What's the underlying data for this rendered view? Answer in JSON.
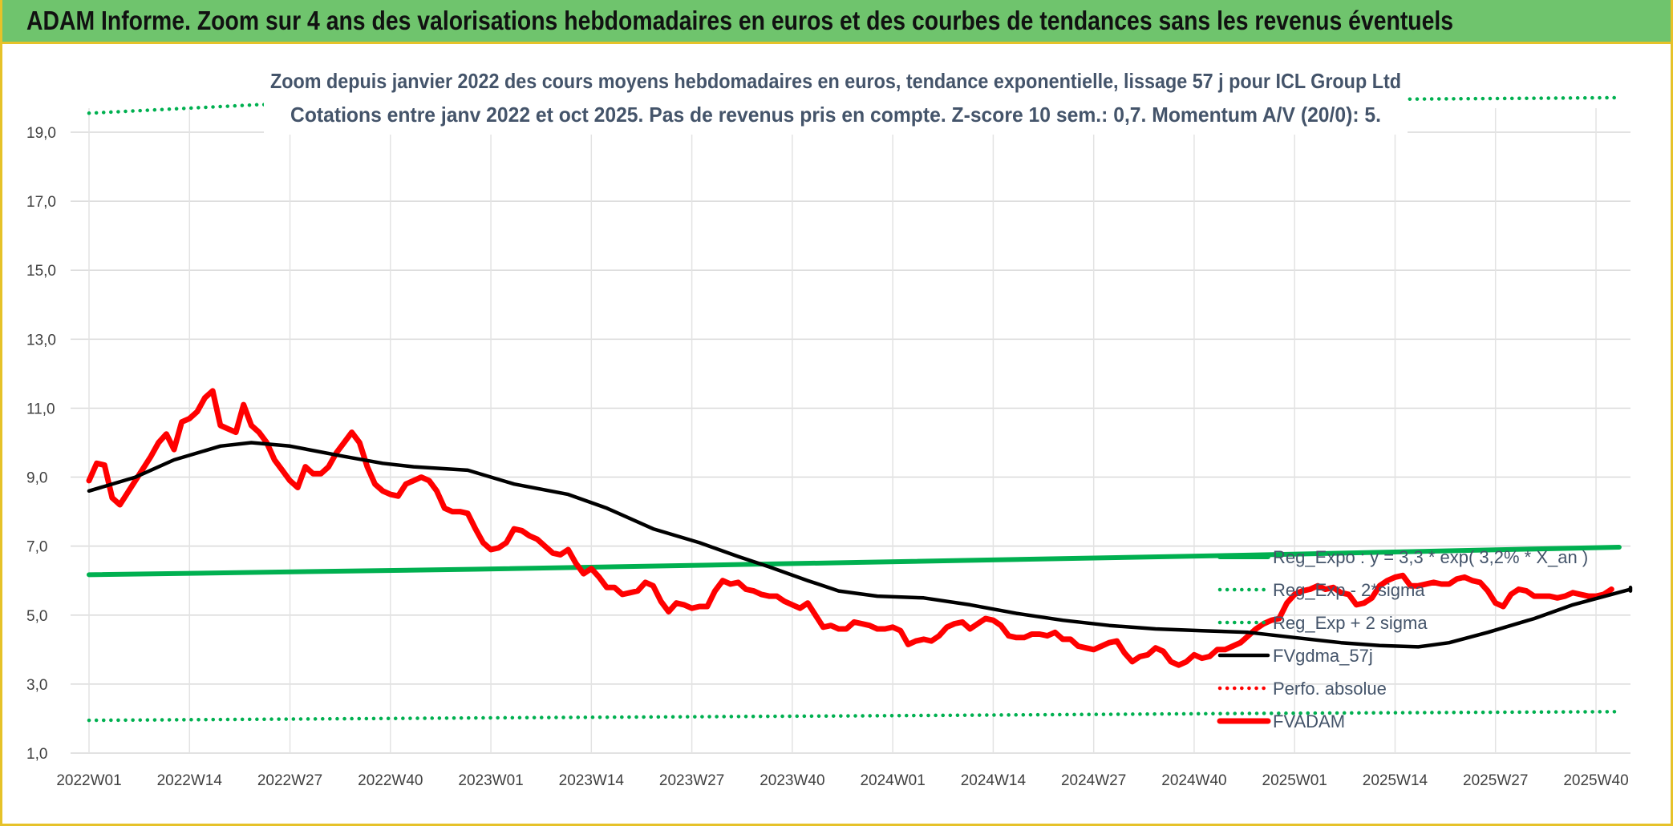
{
  "header": {
    "title": "ADAM Informe. Zoom sur 4 ans des valorisations hebdomadaires en euros et des courbes de tendances sans les revenus éventuels"
  },
  "chart_data": {
    "type": "line",
    "title": "Zoom depuis janvier 2022 des cours moyens hebdomadaires en euros, tendance exponentielle, lissage 57 j pour ICL Group Ltd",
    "subtitle": "Cotations entre janv 2022 et oct 2025. Pas de revenus pris en compte. Z-score 10 sem.: 0,7. Momentum A/V (20/0): 5.",
    "xlabel": "",
    "ylabel": "",
    "ylim": [
      1.0,
      19.0
    ],
    "yticks": [
      "1,0",
      "3,0",
      "5,0",
      "7,0",
      "9,0",
      "11,0",
      "13,0",
      "15,0",
      "17,0",
      "19,0"
    ],
    "ytick_values": [
      1,
      3,
      5,
      7,
      9,
      11,
      13,
      15,
      17,
      19
    ],
    "xrange_weeks": [
      0,
      198
    ],
    "xticks": [
      "2022W01",
      "2022W14",
      "2022W27",
      "2022W40",
      "2023W01",
      "2023W14",
      "2023W27",
      "2023W40",
      "2024W01",
      "2024W14",
      "2024W27",
      "2024W40",
      "2025W01",
      "2025W14",
      "2025W27",
      "2025W40"
    ],
    "grid": true,
    "legend_placement": "bottom-right",
    "series": [
      {
        "name": "Reg_Expo : y = 3,3 * exp( 3,2% *  X_an )",
        "style": "solid",
        "color": "#00b050",
        "points": [
          [
            0,
            6.17
          ],
          [
            50,
            6.33
          ],
          [
            100,
            6.53
          ],
          [
            150,
            6.74
          ],
          [
            198,
            6.97
          ]
        ]
      },
      {
        "name": "Reg_Exp - 2*sigma",
        "style": "dotted",
        "color": "#00b050",
        "points": [
          [
            0,
            1.95
          ],
          [
            50,
            2.02
          ],
          [
            100,
            2.08
          ],
          [
            150,
            2.15
          ],
          [
            198,
            2.2
          ]
        ]
      },
      {
        "name": "Reg_Exp + 2 sigma",
        "style": "dotted",
        "color": "#00b050",
        "points": [
          [
            0,
            19.55
          ],
          [
            22,
            19.8
          ],
          [
            100,
            19.85
          ],
          [
            198,
            20.0
          ]
        ]
      },
      {
        "name": "FVgdma_57j",
        "style": "solid",
        "color": "#000000",
        "points": [
          [
            0,
            8.6
          ],
          [
            6,
            9.0
          ],
          [
            11,
            9.5
          ],
          [
            17,
            9.9
          ],
          [
            21,
            10.0
          ],
          [
            26,
            9.9
          ],
          [
            33,
            9.6
          ],
          [
            38,
            9.4
          ],
          [
            42,
            9.3
          ],
          [
            49,
            9.2
          ],
          [
            55,
            8.8
          ],
          [
            62,
            8.5
          ],
          [
            67,
            8.1
          ],
          [
            73,
            7.5
          ],
          [
            79,
            7.1
          ],
          [
            84,
            6.7
          ],
          [
            88,
            6.4
          ],
          [
            93,
            6.0
          ],
          [
            97,
            5.7
          ],
          [
            102,
            5.55
          ],
          [
            108,
            5.5
          ],
          [
            114,
            5.3
          ],
          [
            120,
            5.05
          ],
          [
            126,
            4.85
          ],
          [
            132,
            4.7
          ],
          [
            138,
            4.6
          ],
          [
            144,
            4.55
          ],
          [
            150,
            4.5
          ],
          [
            156,
            4.35
          ],
          [
            162,
            4.2
          ],
          [
            167,
            4.12
          ],
          [
            172,
            4.08
          ],
          [
            176,
            4.2
          ],
          [
            181,
            4.5
          ],
          [
            187,
            4.9
          ],
          [
            192,
            5.3
          ],
          [
            197,
            5.6
          ],
          [
            203,
            5.75
          ],
          [
            209,
            5.8
          ],
          [
            215,
            5.75
          ],
          [
            222,
            5.72
          ],
          [
            229,
            5.7
          ],
          [
            235,
            5.7
          ]
        ]
      },
      {
        "name": "Perfo. absolue",
        "style": "dotted",
        "color": "#ff0000",
        "points": []
      },
      {
        "name": "FVADAM",
        "style": "solid",
        "color": "#ff0000",
        "points": [
          [
            0,
            8.9
          ],
          [
            1,
            9.4
          ],
          [
            2,
            9.35
          ],
          [
            3,
            8.4
          ],
          [
            4,
            8.2
          ],
          [
            6,
            8.9
          ],
          [
            8,
            9.6
          ],
          [
            9,
            10.0
          ],
          [
            10,
            10.25
          ],
          [
            11,
            9.8
          ],
          [
            12,
            10.6
          ],
          [
            13,
            10.7
          ],
          [
            14,
            10.9
          ],
          [
            15,
            11.3
          ],
          [
            16,
            11.5
          ],
          [
            17,
            10.5
          ],
          [
            18,
            10.4
          ],
          [
            19,
            10.3
          ],
          [
            20,
            11.1
          ],
          [
            21,
            10.5
          ],
          [
            22,
            10.3
          ],
          [
            23,
            10.0
          ],
          [
            24,
            9.5
          ],
          [
            25,
            9.2
          ],
          [
            26,
            8.9
          ],
          [
            27,
            8.7
          ],
          [
            28,
            9.3
          ],
          [
            29,
            9.1
          ],
          [
            30,
            9.1
          ],
          [
            31,
            9.3
          ],
          [
            32,
            9.7
          ],
          [
            33,
            10.0
          ],
          [
            34,
            10.3
          ],
          [
            35,
            10.0
          ],
          [
            36,
            9.3
          ],
          [
            37,
            8.8
          ],
          [
            38,
            8.6
          ],
          [
            39,
            8.5
          ],
          [
            40,
            8.45
          ],
          [
            41,
            8.8
          ],
          [
            42,
            8.9
          ],
          [
            43,
            9.0
          ],
          [
            44,
            8.9
          ],
          [
            45,
            8.6
          ],
          [
            46,
            8.1
          ],
          [
            47,
            8.0
          ],
          [
            48,
            8.0
          ],
          [
            49,
            7.95
          ],
          [
            50,
            7.5
          ],
          [
            51,
            7.1
          ],
          [
            52,
            6.9
          ],
          [
            53,
            6.95
          ],
          [
            54,
            7.1
          ],
          [
            55,
            7.5
          ],
          [
            56,
            7.45
          ],
          [
            57,
            7.3
          ],
          [
            58,
            7.2
          ],
          [
            59,
            7.0
          ],
          [
            60,
            6.8
          ],
          [
            61,
            6.75
          ],
          [
            62,
            6.9
          ],
          [
            63,
            6.5
          ],
          [
            64,
            6.2
          ],
          [
            65,
            6.35
          ],
          [
            66,
            6.1
          ],
          [
            67,
            5.8
          ],
          [
            68,
            5.8
          ],
          [
            69,
            5.6
          ],
          [
            70,
            5.65
          ],
          [
            71,
            5.7
          ],
          [
            72,
            5.95
          ],
          [
            73,
            5.85
          ],
          [
            74,
            5.4
          ],
          [
            75,
            5.1
          ],
          [
            76,
            5.35
          ],
          [
            77,
            5.3
          ],
          [
            78,
            5.2
          ],
          [
            79,
            5.25
          ],
          [
            80,
            5.25
          ],
          [
            81,
            5.7
          ],
          [
            82,
            6.0
          ],
          [
            83,
            5.9
          ],
          [
            84,
            5.95
          ],
          [
            85,
            5.75
          ],
          [
            86,
            5.7
          ],
          [
            87,
            5.6
          ],
          [
            88,
            5.55
          ],
          [
            89,
            5.55
          ],
          [
            90,
            5.4
          ],
          [
            91,
            5.3
          ],
          [
            92,
            5.2
          ],
          [
            93,
            5.35
          ],
          [
            94,
            5.0
          ],
          [
            95,
            4.65
          ],
          [
            96,
            4.7
          ],
          [
            97,
            4.6
          ],
          [
            98,
            4.6
          ],
          [
            99,
            4.8
          ],
          [
            100,
            4.75
          ],
          [
            101,
            4.7
          ],
          [
            102,
            4.6
          ],
          [
            103,
            4.6
          ],
          [
            104,
            4.65
          ],
          [
            105,
            4.55
          ],
          [
            106,
            4.15
          ],
          [
            107,
            4.25
          ],
          [
            108,
            4.3
          ],
          [
            109,
            4.25
          ],
          [
            110,
            4.4
          ],
          [
            111,
            4.65
          ],
          [
            112,
            4.75
          ],
          [
            113,
            4.8
          ],
          [
            114,
            4.6
          ],
          [
            115,
            4.75
          ],
          [
            116,
            4.9
          ],
          [
            117,
            4.85
          ],
          [
            118,
            4.7
          ],
          [
            119,
            4.4
          ],
          [
            120,
            4.35
          ],
          [
            121,
            4.35
          ],
          [
            122,
            4.45
          ],
          [
            123,
            4.45
          ],
          [
            124,
            4.4
          ],
          [
            125,
            4.5
          ],
          [
            126,
            4.3
          ],
          [
            127,
            4.3
          ],
          [
            128,
            4.1
          ],
          [
            129,
            4.05
          ],
          [
            130,
            4.0
          ],
          [
            131,
            4.1
          ],
          [
            132,
            4.2
          ],
          [
            133,
            4.25
          ],
          [
            134,
            3.9
          ],
          [
            135,
            3.65
          ],
          [
            136,
            3.8
          ],
          [
            137,
            3.85
          ],
          [
            138,
            4.05
          ],
          [
            139,
            3.95
          ],
          [
            140,
            3.65
          ],
          [
            141,
            3.55
          ],
          [
            142,
            3.65
          ],
          [
            143,
            3.85
          ],
          [
            144,
            3.75
          ],
          [
            145,
            3.8
          ],
          [
            146,
            4.0
          ],
          [
            147,
            4.0
          ],
          [
            148,
            4.1
          ],
          [
            149,
            4.2
          ],
          [
            150,
            4.4
          ],
          [
            151,
            4.6
          ],
          [
            152,
            4.75
          ],
          [
            153,
            4.85
          ],
          [
            154,
            4.9
          ],
          [
            155,
            5.35
          ],
          [
            156,
            5.6
          ],
          [
            157,
            5.7
          ],
          [
            158,
            5.75
          ],
          [
            159,
            5.85
          ],
          [
            160,
            5.75
          ],
          [
            161,
            5.8
          ],
          [
            162,
            5.65
          ],
          [
            163,
            5.6
          ],
          [
            164,
            5.3
          ],
          [
            165,
            5.35
          ],
          [
            166,
            5.5
          ],
          [
            167,
            5.85
          ],
          [
            168,
            6.0
          ],
          [
            169,
            6.1
          ],
          [
            170,
            6.15
          ],
          [
            171,
            5.85
          ],
          [
            172,
            5.85
          ],
          [
            173,
            5.9
          ],
          [
            174,
            5.95
          ],
          [
            175,
            5.9
          ],
          [
            176,
            5.9
          ],
          [
            177,
            6.05
          ],
          [
            178,
            6.1
          ],
          [
            179,
            6.0
          ],
          [
            180,
            5.95
          ],
          [
            181,
            5.7
          ],
          [
            182,
            5.35
          ],
          [
            183,
            5.25
          ],
          [
            184,
            5.6
          ],
          [
            185,
            5.75
          ],
          [
            186,
            5.7
          ],
          [
            187,
            5.55
          ],
          [
            188,
            5.55
          ],
          [
            189,
            5.55
          ],
          [
            190,
            5.5
          ],
          [
            191,
            5.55
          ],
          [
            192,
            5.65
          ],
          [
            193,
            5.6
          ],
          [
            194,
            5.55
          ],
          [
            195,
            5.55
          ],
          [
            196,
            5.6
          ],
          [
            197,
            5.75
          ]
        ]
      }
    ]
  }
}
